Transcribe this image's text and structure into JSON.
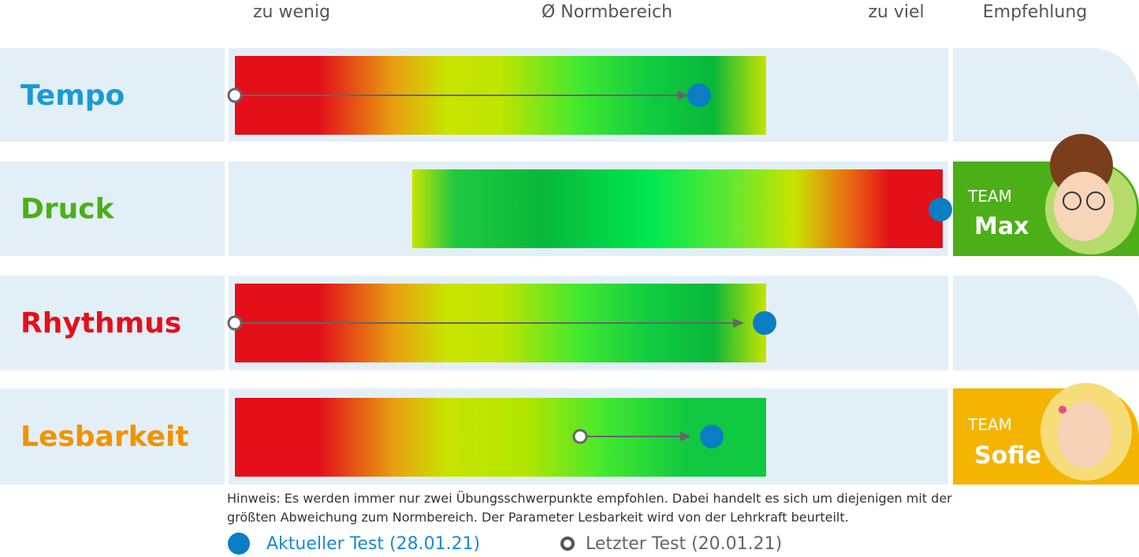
{
  "header": {
    "low": "zu wenig",
    "norm": "Ø Normbereich",
    "high": "zu viel",
    "recommendation": "Empfehlung"
  },
  "rows": [
    {
      "label": "Tempo"
    },
    {
      "label": "Druck",
      "team": "TEAM",
      "name": "Max"
    },
    {
      "label": "Rhythmus"
    },
    {
      "label": "Lesbarkeit",
      "team": "TEAM",
      "name": "Sofie"
    }
  ],
  "hint": [
    "Hinweis: Es werden immer nur zwei Übungsschwerpunkte empfohlen. Dabei handelt es sich um diejenigen mit der",
    "größten Abweichung zum Normbereich. Der Parameter Lesbarkeit wird von der Lehrkraft beurteilt."
  ],
  "legend": {
    "current": "Aktueller Test (28.01.21)",
    "last": "Letzter Test (20.01.21)"
  }
}
